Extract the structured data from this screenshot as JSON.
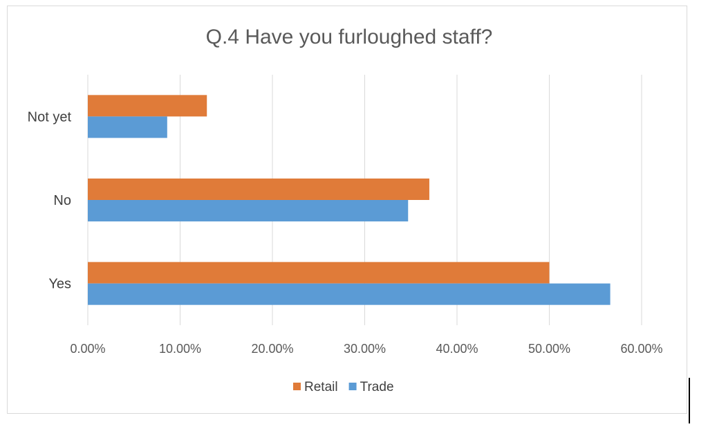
{
  "chart_data": {
    "type": "bar",
    "orientation": "horizontal",
    "title": "Q.4  Have you furloughed staff?",
    "categories": [
      "Yes",
      "No",
      "Not yet"
    ],
    "series": [
      {
        "name": "Retail",
        "values": [
          50.0,
          37.0,
          12.9
        ],
        "color": "#E07B39"
      },
      {
        "name": "Trade",
        "values": [
          56.6,
          34.7,
          8.6
        ],
        "color": "#5B9BD5"
      }
    ],
    "xlim": [
      0,
      60
    ],
    "xticks": [
      "0.00%",
      "10.00%",
      "20.00%",
      "30.00%",
      "40.00%",
      "50.00%",
      "60.00%"
    ],
    "grid": true,
    "legend": "bottom",
    "xlabel": "",
    "ylabel": ""
  }
}
